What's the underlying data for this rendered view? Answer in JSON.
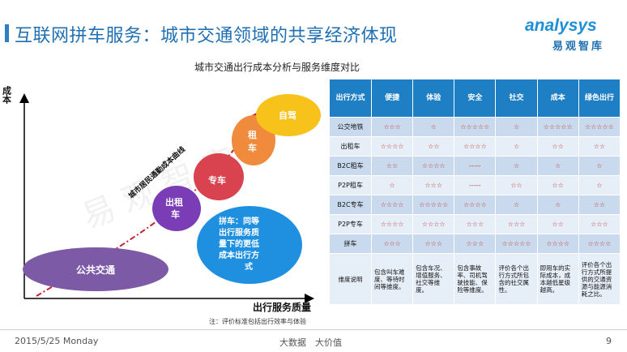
{
  "header": {
    "title": "互联网拼车服务：城市交通领域的共享经济体现",
    "logo_text": "analysys",
    "logo_sub": "易观智库"
  },
  "subtitle": "城市交通出行成本分析与服务维度对比",
  "chart": {
    "y_label": "成本",
    "x_label": "出行服务质量",
    "curve_label": "城市居民通勤成本曲线",
    "bubbles": {
      "public_transit": "公共交通",
      "taxi_line1": "出租",
      "taxi_line2": "车",
      "premium_car": "专车",
      "rental_line1": "租",
      "rental_line2": "车",
      "self_drive": "自驾",
      "carpool_line1": "拼车：同等",
      "carpool_line2": "出行服务质",
      "carpool_line3": "量下的更低",
      "carpool_line4": "成本出行方",
      "carpool_line5": "式"
    },
    "colors": {
      "public_transit": "#7c5aa6",
      "taxi": "#7a3db5",
      "premium_car": "#d8434f",
      "rental": "#f08a3c",
      "self_drive": "#f7c21a",
      "carpool": "#1f8fe0",
      "curve": "#c0272d"
    }
  },
  "note": "注：评价标准包括出行效率与体验",
  "table": {
    "headers": [
      "出行方式",
      "便捷",
      "体验",
      "安全",
      "社交",
      "成本",
      "绿色出行"
    ],
    "rows": [
      {
        "label": "公交地铁",
        "cells": [
          "☆☆☆",
          "☆",
          "☆☆☆☆☆",
          "☆",
          "☆☆☆☆☆",
          "☆☆☆☆☆"
        ]
      },
      {
        "label": "出租车",
        "cells": [
          "☆☆☆☆",
          "☆☆",
          "☆☆☆☆",
          "☆",
          "☆☆",
          "☆☆"
        ]
      },
      {
        "label": "B2C租车",
        "cells": [
          "☆☆",
          "☆☆☆☆",
          "-----",
          "☆",
          "☆",
          "☆"
        ]
      },
      {
        "label": "P2P租车",
        "cells": [
          "☆",
          "☆☆☆",
          "-----",
          "☆☆",
          "☆☆",
          "☆"
        ]
      },
      {
        "label": "B2C专车",
        "cells": [
          "☆☆☆☆",
          "☆☆☆☆☆",
          "☆☆☆☆",
          "☆",
          "☆",
          "☆☆"
        ]
      },
      {
        "label": "P2P专车",
        "cells": [
          "☆☆☆☆",
          "☆☆☆☆",
          "☆☆☆",
          "☆☆☆",
          "☆☆",
          "☆☆☆"
        ]
      },
      {
        "label": "拼车",
        "cells": [
          "☆☆☆",
          "☆☆☆",
          "☆☆☆",
          "☆☆☆☆☆",
          "☆☆☆☆",
          "☆☆☆☆"
        ]
      }
    ],
    "desc_label": "维度说明",
    "desc": [
      "包含叫车难度、等待时间等维度。",
      "包含车况、增值服务、社交等维度。",
      "包含事故率、司机驾驶技能、保险等维度。",
      "评价各个出行方式所包含的社交属性。",
      "即用车的实际成本，成本越低星级越高。",
      "评价各个出行方式所提供的交通资源与能源消耗之比。"
    ]
  },
  "footer": {
    "date": "2015/5/25 Monday",
    "center": "大数据　大价值",
    "page": "9"
  }
}
